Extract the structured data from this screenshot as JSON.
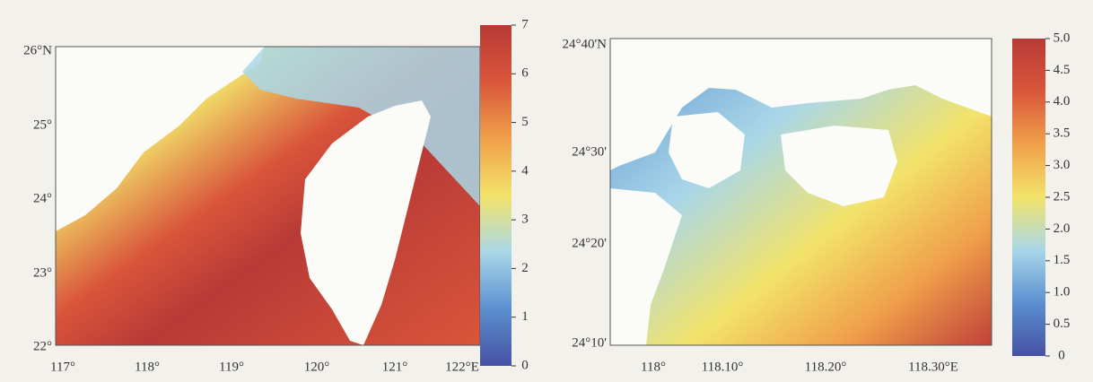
{
  "maps": [
    {
      "x_labels": [
        "117°",
        "118°",
        "119°",
        "120°",
        "121°",
        "122°E"
      ],
      "y_labels": [
        "26°N",
        "25°",
        "24°",
        "23°",
        "22°"
      ],
      "colorbar": {
        "lim": [
          0,
          7
        ],
        "ticks": [
          0,
          1,
          2,
          3,
          4,
          5,
          6,
          7
        ],
        "colors": [
          "#4651a3",
          "#5b8fd0",
          "#a9d7e8",
          "#f2e36a",
          "#f0a04a",
          "#d9563b",
          "#b83a36"
        ]
      }
    },
    {
      "x_labels": [
        "118°",
        "118.10°",
        "118.20°",
        "118.30°E"
      ],
      "y_labels": [
        "24°40'N",
        "24°30'",
        "24°20'",
        "24°10'"
      ],
      "colorbar": {
        "lim": [
          0,
          5
        ],
        "ticks": [
          0,
          0.5,
          {
            "value": 1,
            "label": "1.0"
          },
          1.5,
          {
            "value": 2,
            "label": "2.0"
          },
          2.5,
          {
            "value": 3,
            "label": "3.0"
          },
          3.5,
          {
            "value": 4,
            "label": "4.0"
          },
          4.5,
          {
            "value": 5,
            "label": "5.0"
          }
        ],
        "colors": [
          "#4651a3",
          "#5b8fd0",
          "#a9d7e8",
          "#f2e36a",
          "#f0a04a",
          "#d9563b",
          "#b83a36"
        ]
      }
    }
  ]
}
